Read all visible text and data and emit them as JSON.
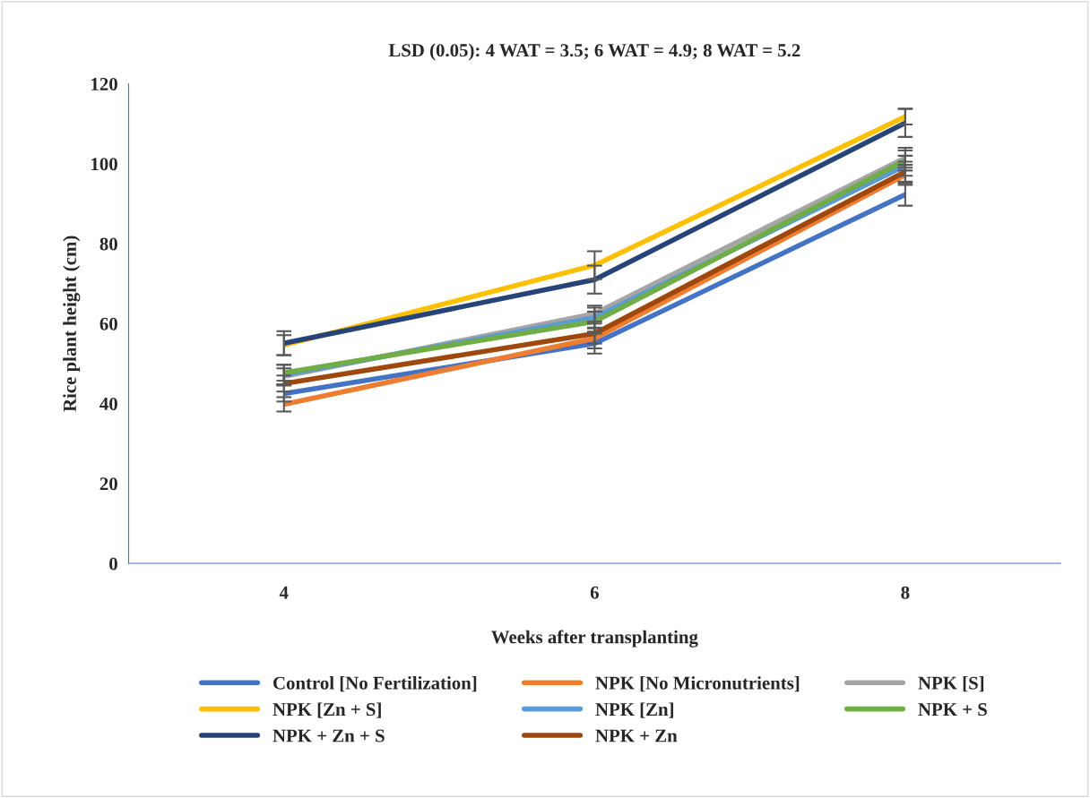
{
  "chart_data": {
    "type": "line",
    "title": "LSD (0.05): 4 WAT = 3.5; 6 WAT = 4.9; 8 WAT = 5.2",
    "xlabel": "Weeks after transplanting",
    "ylabel": "Rice plant height (cm)",
    "categories": [
      "4",
      "6",
      "8"
    ],
    "ylim": [
      0,
      120
    ],
    "yticks": [
      0,
      20,
      40,
      60,
      80,
      100,
      120
    ],
    "grid": false,
    "legend": "bottom",
    "marker": "none",
    "line_style": "solid",
    "series": [
      {
        "name": "Control [No Fertilization]",
        "color": "#4472c4",
        "values": [
          42.5,
          55.0,
          92.3
        ],
        "errors": [
          2.0,
          2.5,
          2.8
        ]
      },
      {
        "name": "NPK [No Micronutrients]",
        "color": "#ed7d31",
        "values": [
          39.8,
          56.3,
          97.2
        ],
        "errors": [
          1.8,
          2.5,
          2.5
        ]
      },
      {
        "name": "NPK [S]",
        "color": "#a5a5a5",
        "values": [
          46.8,
          62.5,
          101.5
        ],
        "errors": [
          2.0,
          2.0,
          2.5
        ]
      },
      {
        "name": "NPK [Zn + S]",
        "color": "#ffc000",
        "values": [
          54.6,
          74.6,
          111.8
        ],
        "errors": [
          2.5,
          3.5,
          2.0
        ]
      },
      {
        "name": "NPK [Zn]",
        "color": "#5b9bd5",
        "values": [
          47.2,
          61.5,
          99.5
        ],
        "errors": [
          2.5,
          2.5,
          2.5
        ]
      },
      {
        "name": "NPK + S",
        "color": "#70ad47",
        "values": [
          47.7,
          60.5,
          100.8
        ],
        "errors": [
          2.0,
          2.5,
          2.5
        ]
      },
      {
        "name": "NPK + Zn + S",
        "color": "#264478",
        "values": [
          55.1,
          71.0,
          110.2
        ],
        "errors": [
          3.0,
          3.5,
          3.5
        ]
      },
      {
        "name": "NPK + Zn",
        "color": "#9e480e",
        "values": [
          45.0,
          57.5,
          98.0
        ],
        "errors": [
          2.0,
          2.5,
          2.5
        ]
      }
    ]
  }
}
